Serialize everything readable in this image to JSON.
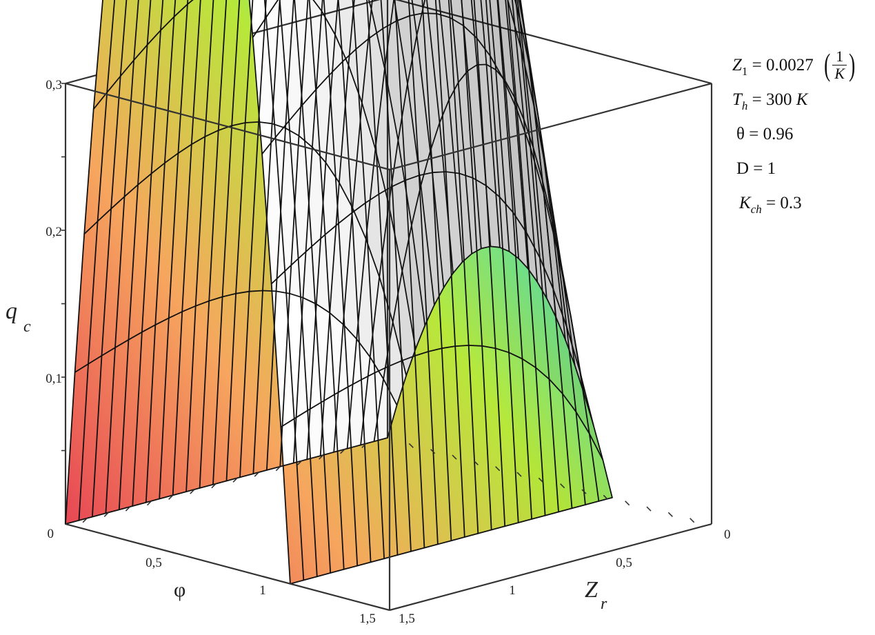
{
  "chart_data": {
    "type": "surface3d",
    "title": "",
    "z_label": {
      "symbol": "q",
      "subscript": "c"
    },
    "x_label": "φ",
    "y_label": {
      "symbol": "Z",
      "subscript": "r"
    },
    "x_range": [
      0,
      1.5
    ],
    "y_range": [
      0,
      1.5
    ],
    "z_range": [
      0,
      0.3
    ],
    "z_ticks": [
      "0",
      "0,1",
      "0,2",
      "0,3"
    ],
    "x_ticks": [
      "0",
      "0,5",
      "1",
      "1,5"
    ],
    "y_ticks": [
      "0",
      "0,5",
      "1",
      "1,5"
    ],
    "x_tick_values": [
      0,
      0.5,
      1,
      1.5
    ],
    "y_tick_values": [
      0,
      0.5,
      1,
      1.5
    ],
    "z_tick_values": [
      0,
      0.1,
      0.2,
      0.3
    ],
    "grid": false,
    "surface_domain": {
      "phi": [
        0,
        1.04
      ],
      "Zr": [
        0,
        1.5
      ]
    },
    "mesh_lines_per_axis": 24,
    "approx_values": [
      {
        "phi": 0.52,
        "Zr": 0.0,
        "q_c": 0.085
      },
      {
        "phi": 0.52,
        "Zr": 0.75,
        "q_c": 0.315
      },
      {
        "phi": 0.52,
        "Zr": 1.5,
        "q_c": 0.155
      },
      {
        "phi": 0.0,
        "Zr": 0.75,
        "q_c": 0.0
      },
      {
        "phi": 1.04,
        "Zr": 0.75,
        "q_c": 0.0
      }
    ],
    "colors": {
      "start": "#e84a55",
      "mid_a": "#f6a65e",
      "mid_b": "#b7e83a",
      "mid_c": "#46e6c9",
      "end": "#4aa8f7"
    }
  },
  "parameters": {
    "z1": {
      "symbol": "Z",
      "subscript": "1",
      "value": " = 0.0027 ",
      "frac_num": "1",
      "frac_den": "K"
    },
    "th": {
      "symbol": "T",
      "subscript": "h",
      "value": " = 300 ",
      "unit": "K"
    },
    "theta": {
      "text": "θ = 0.96"
    },
    "d": {
      "text": "D = 1"
    },
    "kch": {
      "symbol": "K",
      "subscript": "ch",
      "value": " = 0.3"
    }
  }
}
